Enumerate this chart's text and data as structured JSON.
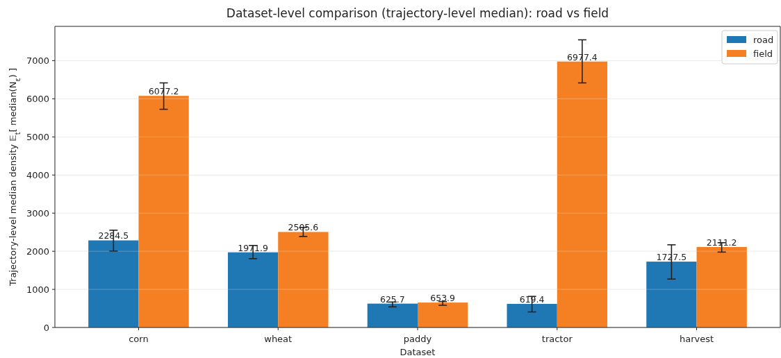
{
  "chart_data": {
    "type": "bar",
    "title": "Dataset-level comparison (trajectory-level median): road vs field",
    "xlabel": "Dataset",
    "ylabel": "Trajectory-level median density  𝔼$_{t}$[ median(N$_{ε}$) ]",
    "categories": [
      "corn",
      "wheat",
      "paddy",
      "tractor",
      "harvest"
    ],
    "series": [
      {
        "name": "road",
        "color": "#1f77b4",
        "values": [
          2284.5,
          1971.9,
          625.7,
          619.4,
          1727.5
        ],
        "errors": [
          [
            2005,
            2552
          ],
          [
            1805,
            2151
          ],
          [
            541,
            667
          ],
          [
            408,
            815
          ],
          [
            1271,
            2169
          ]
        ]
      },
      {
        "name": "field",
        "color": "#f58024",
        "values": [
          6077.2,
          2505.6,
          653.9,
          6977.4,
          2111.2
        ],
        "errors": [
          [
            5724,
            6417
          ],
          [
            2388,
            2625
          ],
          [
            583,
            681
          ],
          [
            6417,
            7547
          ],
          [
            1978,
            2224
          ]
        ]
      }
    ],
    "ylim": [
      0,
      7900
    ],
    "yticks": [
      0,
      1000,
      2000,
      3000,
      4000,
      5000,
      6000,
      7000
    ],
    "grid": "y",
    "legend": "top right",
    "data_labels": true
  }
}
